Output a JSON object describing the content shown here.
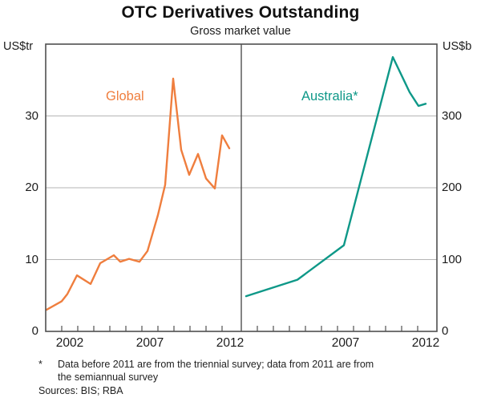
{
  "header": {
    "title": "OTC Derivatives Outstanding",
    "subtitle": "Gross market value"
  },
  "axes": {
    "left_unit": "US$tr",
    "right_unit": "US$b"
  },
  "footnote": {
    "marker": "*",
    "line1": "Data before 2011 are from the triennial survey; data from 2011 are from",
    "line2": "the semiannual survey",
    "sources": "Sources: BIS; RBA"
  },
  "colors": {
    "global_line": "#EF7E3E",
    "australia_line": "#0E9888",
    "grid": "#b5b5b5",
    "frame": "#4f4f4f",
    "text": "#1c1c1c"
  },
  "chart_data": [
    {
      "type": "line",
      "panel": "left",
      "series_label": "Global",
      "color": "#EF7E3E",
      "ylabel": "US$tr",
      "ylim": [
        0,
        40
      ],
      "yticks": [
        0,
        10,
        20,
        30
      ],
      "xlim": [
        2001,
        2013.2
      ],
      "xticks_years": [
        2002,
        2003,
        2004,
        2005,
        2006,
        2007,
        2008,
        2009,
        2010,
        2011,
        2012
      ],
      "xtick_labels": [
        {
          "year": 2002,
          "text": "2002"
        },
        {
          "year": 2007,
          "text": "2007"
        },
        {
          "year": 2012,
          "text": "2012"
        }
      ],
      "points": [
        [
          2001.05,
          3.0
        ],
        [
          2002.0,
          4.2
        ],
        [
          2002.35,
          5.2
        ],
        [
          2002.95,
          7.8
        ],
        [
          2003.8,
          6.6
        ],
        [
          2004.4,
          9.5
        ],
        [
          2005.25,
          10.6
        ],
        [
          2005.65,
          9.7
        ],
        [
          2006.2,
          10.1
        ],
        [
          2006.85,
          9.7
        ],
        [
          2007.35,
          11.2
        ],
        [
          2008.0,
          16.2
        ],
        [
          2008.45,
          20.4
        ],
        [
          2008.95,
          35.2
        ],
        [
          2009.45,
          25.3
        ],
        [
          2009.95,
          21.8
        ],
        [
          2010.5,
          24.7
        ],
        [
          2011.0,
          21.3
        ],
        [
          2011.55,
          19.9
        ],
        [
          2012.0,
          27.3
        ],
        [
          2012.45,
          25.5
        ]
      ]
    },
    {
      "type": "line",
      "panel": "right",
      "series_label": "Australia*",
      "color": "#0E9888",
      "ylabel": "US$b",
      "ylim": [
        0,
        400
      ],
      "yticks": [
        0,
        100,
        200,
        300
      ],
      "xlim": [
        2001,
        2013.2
      ],
      "xticks_years": [
        2002,
        2003,
        2004,
        2005,
        2006,
        2007,
        2008,
        2009,
        2010,
        2011,
        2012
      ],
      "xtick_labels": [
        {
          "year": 2007,
          "text": "2007"
        },
        {
          "year": 2012,
          "text": "2012"
        }
      ],
      "points": [
        [
          2001.3,
          49
        ],
        [
          2004.5,
          72
        ],
        [
          2007.4,
          120
        ],
        [
          2010.45,
          382
        ],
        [
          2011.5,
          333
        ],
        [
          2012.05,
          314
        ],
        [
          2012.5,
          317
        ]
      ]
    }
  ]
}
